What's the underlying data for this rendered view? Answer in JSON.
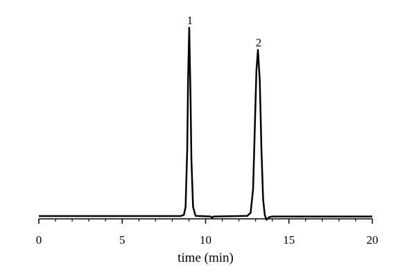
{
  "chart_data": {
    "type": "line",
    "x_label": "time (min)",
    "x": [
      0,
      8.5,
      8.7,
      8.8,
      8.9,
      8.95,
      9.02,
      9.1,
      9.15,
      9.25,
      9.4,
      10.3,
      10.4,
      10.5,
      12.5,
      12.7,
      12.85,
      12.95,
      13.05,
      13.14,
      13.25,
      13.35,
      13.45,
      13.55,
      13.65,
      13.8,
      14,
      20
    ],
    "values": [
      1.4,
      1.4,
      2,
      6,
      35,
      70,
      96.5,
      60,
      30,
      6,
      1.5,
      1.2,
      0.6,
      1.2,
      1.5,
      3,
      15,
      45,
      75,
      85.3,
      70,
      35,
      10,
      2,
      -0.5,
      0.8,
      1.2,
      1.2
    ],
    "color": "#000000",
    "xlim": [
      0,
      20
    ],
    "xticks": [
      0,
      5,
      10,
      15,
      20
    ],
    "ylim": [
      0,
      100
    ],
    "annotations": [
      {
        "text": "1"
      },
      {
        "text": "2"
      }
    ]
  }
}
